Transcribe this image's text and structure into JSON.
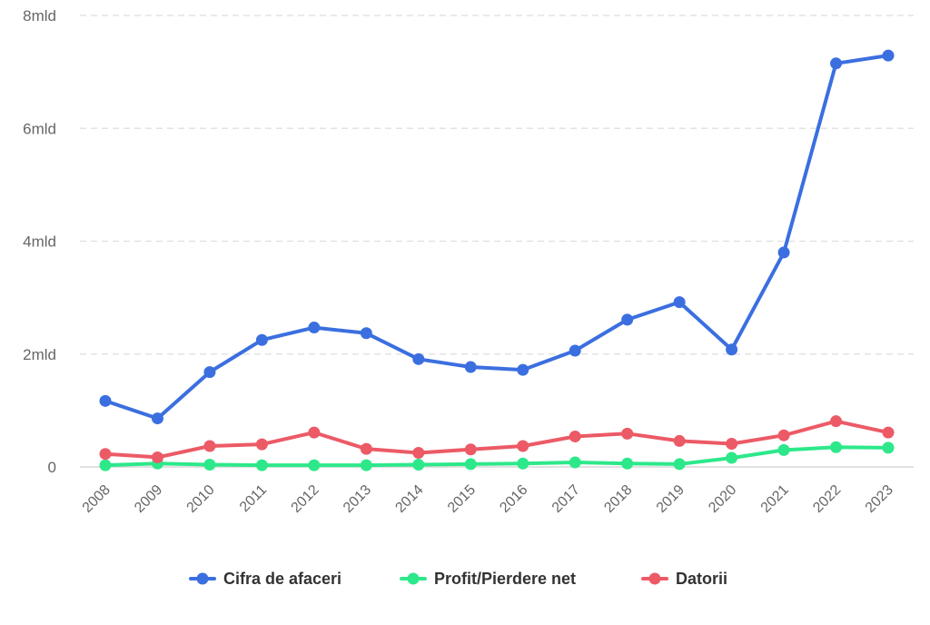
{
  "chart_data": {
    "type": "line",
    "title": "",
    "xlabel": "",
    "ylabel": "",
    "categories": [
      "2008",
      "2009",
      "2010",
      "2011",
      "2012",
      "2013",
      "2014",
      "2015",
      "2016",
      "2017",
      "2018",
      "2019",
      "2020",
      "2021",
      "2022",
      "2023"
    ],
    "ylim": [
      0,
      8000000000
    ],
    "yticks": [
      {
        "value": 0,
        "label": "0"
      },
      {
        "value": 2000000000,
        "label": "2mld"
      },
      {
        "value": 4000000000,
        "label": "4mld"
      },
      {
        "value": 6000000000,
        "label": "6mld"
      },
      {
        "value": 8000000000,
        "label": "8mld"
      }
    ],
    "grid": "horizontal dashed",
    "legend_position": "bottom",
    "series": [
      {
        "name": "Cifra de afaceri",
        "color": "#3b6fe0",
        "values": [
          1170000000,
          860000000,
          1680000000,
          2250000000,
          2470000000,
          2370000000,
          1910000000,
          1770000000,
          1720000000,
          2060000000,
          2610000000,
          2920000000,
          2080000000,
          3800000000,
          7150000000,
          7290000000
        ]
      },
      {
        "name": "Profit/Pierdere net",
        "color": "#2de88a",
        "values": [
          30000000,
          60000000,
          40000000,
          30000000,
          30000000,
          30000000,
          40000000,
          50000000,
          60000000,
          80000000,
          60000000,
          50000000,
          160000000,
          300000000,
          350000000,
          340000000
        ]
      },
      {
        "name": "Datorii",
        "color": "#ec5a66",
        "values": [
          230000000,
          170000000,
          370000000,
          400000000,
          610000000,
          320000000,
          250000000,
          310000000,
          370000000,
          540000000,
          590000000,
          460000000,
          410000000,
          560000000,
          810000000,
          610000000
        ]
      }
    ]
  }
}
